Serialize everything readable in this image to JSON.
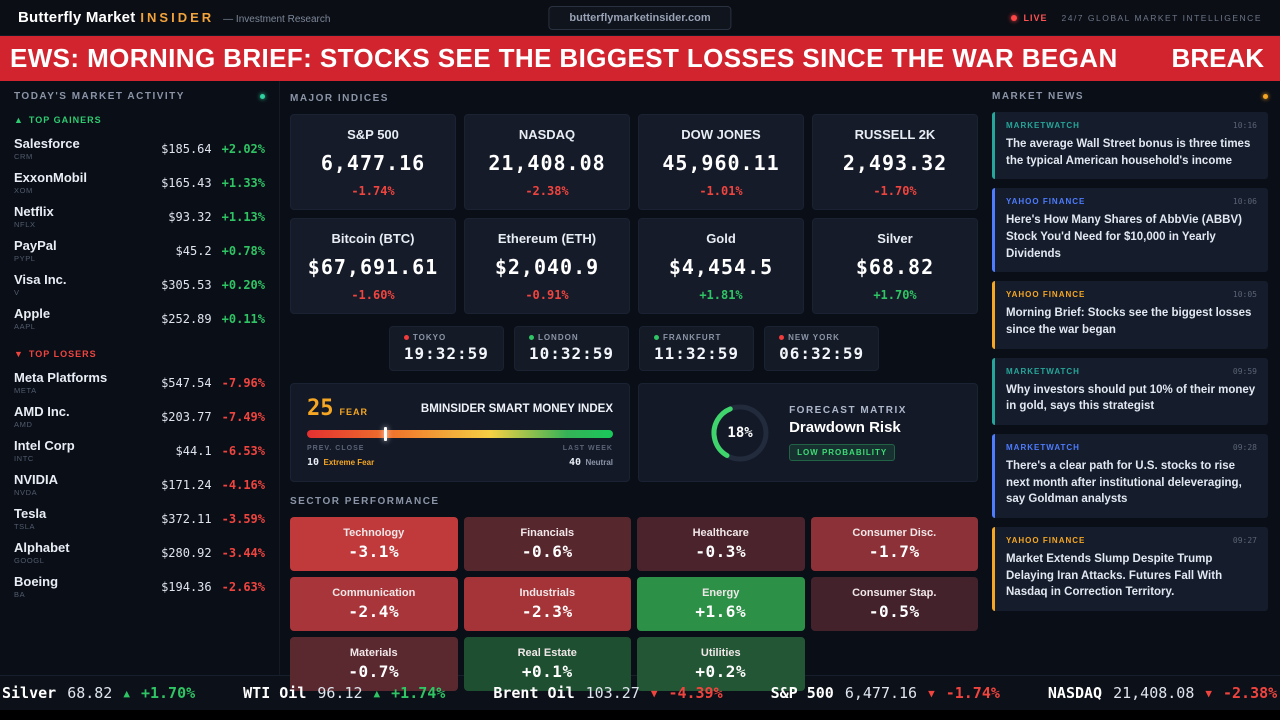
{
  "topbar": {
    "brand": "Butterfly Market",
    "brand_accent": "INSIDER",
    "tagline": "— Investment Research",
    "domain": "butterflymarketinsider.com",
    "live_label": "LIVE",
    "right_label": "24/7 GLOBAL MARKET INTELLIGENCE"
  },
  "breaking": {
    "headline": "EWS: MORNING BRIEF: STOCKS SEE THE BIGGEST LOSSES SINCE THE WAR BEGAN",
    "badge": "BREAK"
  },
  "sidebar": {
    "title": "TODAY'S MARKET ACTIVITY",
    "gainers_icon": "▲",
    "gainers_label": "TOP GAINERS",
    "losers_icon": "▼",
    "losers_label": "TOP LOSERS",
    "gainers": [
      {
        "name": "Salesforce",
        "ticker": "CRM",
        "price": "$185.64",
        "change": "+2.02%"
      },
      {
        "name": "ExxonMobil",
        "ticker": "XOM",
        "price": "$165.43",
        "change": "+1.33%"
      },
      {
        "name": "Netflix",
        "ticker": "NFLX",
        "price": "$93.32",
        "change": "+1.13%"
      },
      {
        "name": "PayPal",
        "ticker": "PYPL",
        "price": "$45.2",
        "change": "+0.78%"
      },
      {
        "name": "Visa Inc.",
        "ticker": "V",
        "price": "$305.53",
        "change": "+0.20%"
      },
      {
        "name": "Apple",
        "ticker": "AAPL",
        "price": "$252.89",
        "change": "+0.11%"
      }
    ],
    "losers": [
      {
        "name": "Meta Platforms",
        "ticker": "META",
        "price": "$547.54",
        "change": "-7.96%"
      },
      {
        "name": "AMD Inc.",
        "ticker": "AMD",
        "price": "$203.77",
        "change": "-7.49%"
      },
      {
        "name": "Intel Corp",
        "ticker": "INTC",
        "price": "$44.1",
        "change": "-6.53%"
      },
      {
        "name": "NVIDIA",
        "ticker": "NVDA",
        "price": "$171.24",
        "change": "-4.16%"
      },
      {
        "name": "Tesla",
        "ticker": "TSLA",
        "price": "$372.11",
        "change": "-3.59%"
      },
      {
        "name": "Alphabet",
        "ticker": "GOOGL",
        "price": "$280.92",
        "change": "-3.44%"
      },
      {
        "name": "Boeing",
        "ticker": "BA",
        "price": "$194.36",
        "change": "-2.63%"
      }
    ]
  },
  "indices": {
    "title": "MAJOR INDICES",
    "cards": [
      {
        "name": "S&P 500",
        "value": "6,477.16",
        "change": "-1.74%"
      },
      {
        "name": "NASDAQ",
        "value": "21,408.08",
        "change": "-2.38%"
      },
      {
        "name": "DOW JONES",
        "value": "45,960.11",
        "change": "-1.01%"
      },
      {
        "name": "RUSSELL 2K",
        "value": "2,493.32",
        "change": "-1.70%"
      },
      {
        "name": "Bitcoin (BTC)",
        "value": "$67,691.61",
        "change": "-1.60%"
      },
      {
        "name": "Ethereum (ETH)",
        "value": "$2,040.9",
        "change": "-0.91%"
      },
      {
        "name": "Gold",
        "value": "$4,454.5",
        "change": "+1.81%"
      },
      {
        "name": "Silver",
        "value": "$68.82",
        "change": "+1.70%"
      }
    ]
  },
  "clocks": [
    {
      "city": "TOKYO",
      "time": "19:32:59",
      "dot": "#f23b3b"
    },
    {
      "city": "LONDON",
      "time": "10:32:59",
      "dot": "#2fc464"
    },
    {
      "city": "FRANKFURT",
      "time": "11:32:59",
      "dot": "#2fc464"
    },
    {
      "city": "NEW YORK",
      "time": "06:32:59",
      "dot": "#f23b3b"
    }
  ],
  "fear_gauge": {
    "value": "25",
    "label": "FEAR",
    "title": "BMINSIDER SMART MONEY INDEX",
    "marker_pct": 25,
    "prev_label": "PREV. CLOSE",
    "prev_value": "10",
    "prev_text": "Extreme Fear",
    "week_label": "LAST WEEK",
    "week_value": "40",
    "week_text": "Neutral"
  },
  "forecast": {
    "value": "18%",
    "title": "FORECAST MATRIX",
    "subtitle": "Drawdown Risk",
    "badge": "LOW PROBABILITY"
  },
  "sectors": {
    "title": "SECTOR PERFORMANCE",
    "tiles": [
      {
        "name": "Technology",
        "value": "-3.1%",
        "bg": "#c03a3c"
      },
      {
        "name": "Financials",
        "value": "-0.6%",
        "bg": "#57272e"
      },
      {
        "name": "Healthcare",
        "value": "-0.3%",
        "bg": "#4a232c"
      },
      {
        "name": "Consumer Disc.",
        "value": "-1.7%",
        "bg": "#8c3138"
      },
      {
        "name": "Communication",
        "value": "-2.4%",
        "bg": "#a83539"
      },
      {
        "name": "Industrials",
        "value": "-2.3%",
        "bg": "#a43438"
      },
      {
        "name": "Energy",
        "value": "+1.6%",
        "bg": "#2c9147"
      },
      {
        "name": "Consumer Stap.",
        "value": "-0.5%",
        "bg": "#43222c"
      },
      {
        "name": "Materials",
        "value": "-0.7%",
        "bg": "#5a282f"
      },
      {
        "name": "Real Estate",
        "value": "+0.1%",
        "bg": "#1f4f31"
      },
      {
        "name": "Utilities",
        "value": "+0.2%",
        "bg": "#235634"
      }
    ]
  },
  "news": {
    "title": "MARKET NEWS",
    "items": [
      {
        "source": "MARKETWATCH",
        "time": "10:16",
        "accent": "#26a69a",
        "headline": "The average Wall Street bonus is three times the typical American household's income"
      },
      {
        "source": "YAHOO FINANCE",
        "time": "10:06",
        "accent": "#4d7cfe",
        "headline": "Here's How Many Shares of AbbVie (ABBV) Stock You'd Need for $10,000 in Yearly Dividends"
      },
      {
        "source": "YAHOO FINANCE",
        "time": "10:05",
        "accent": "#f5a623",
        "headline": "Morning Brief: Stocks see the biggest losses since the war began"
      },
      {
        "source": "MARKETWATCH",
        "time": "09:59",
        "accent": "#26a69a",
        "headline": "Why investors should put 10% of their money in gold, says this strategist"
      },
      {
        "source": "MARKETWATCH",
        "time": "09:28",
        "accent": "#4d7cfe",
        "headline": "There's a clear path for U.S. stocks to rise next month after institutional deleveraging, say Goldman analysts"
      },
      {
        "source": "YAHOO FINANCE",
        "time": "09:27",
        "accent": "#f5a623",
        "headline": "Market Extends Slump Despite Trump Delaying Iran Attacks. Futures Fall With Nasdaq in Correction Territory."
      }
    ]
  },
  "ticker": {
    "items": [
      {
        "label": "Silver",
        "value": "68.82",
        "arrow": "▲",
        "change": "+1.70%"
      },
      {
        "label": "WTI Oil",
        "value": "96.12",
        "arrow": "▲",
        "change": "+1.74%"
      },
      {
        "label": "Brent Oil",
        "value": "103.27",
        "arrow": "▼",
        "change": "-4.39%"
      },
      {
        "label": "S&P 500",
        "value": "6,477.16",
        "arrow": "▼",
        "change": "-1.74%"
      },
      {
        "label": "NASDAQ",
        "value": "21,408.08",
        "arrow": "▼",
        "change": "-2.38%"
      }
    ]
  }
}
